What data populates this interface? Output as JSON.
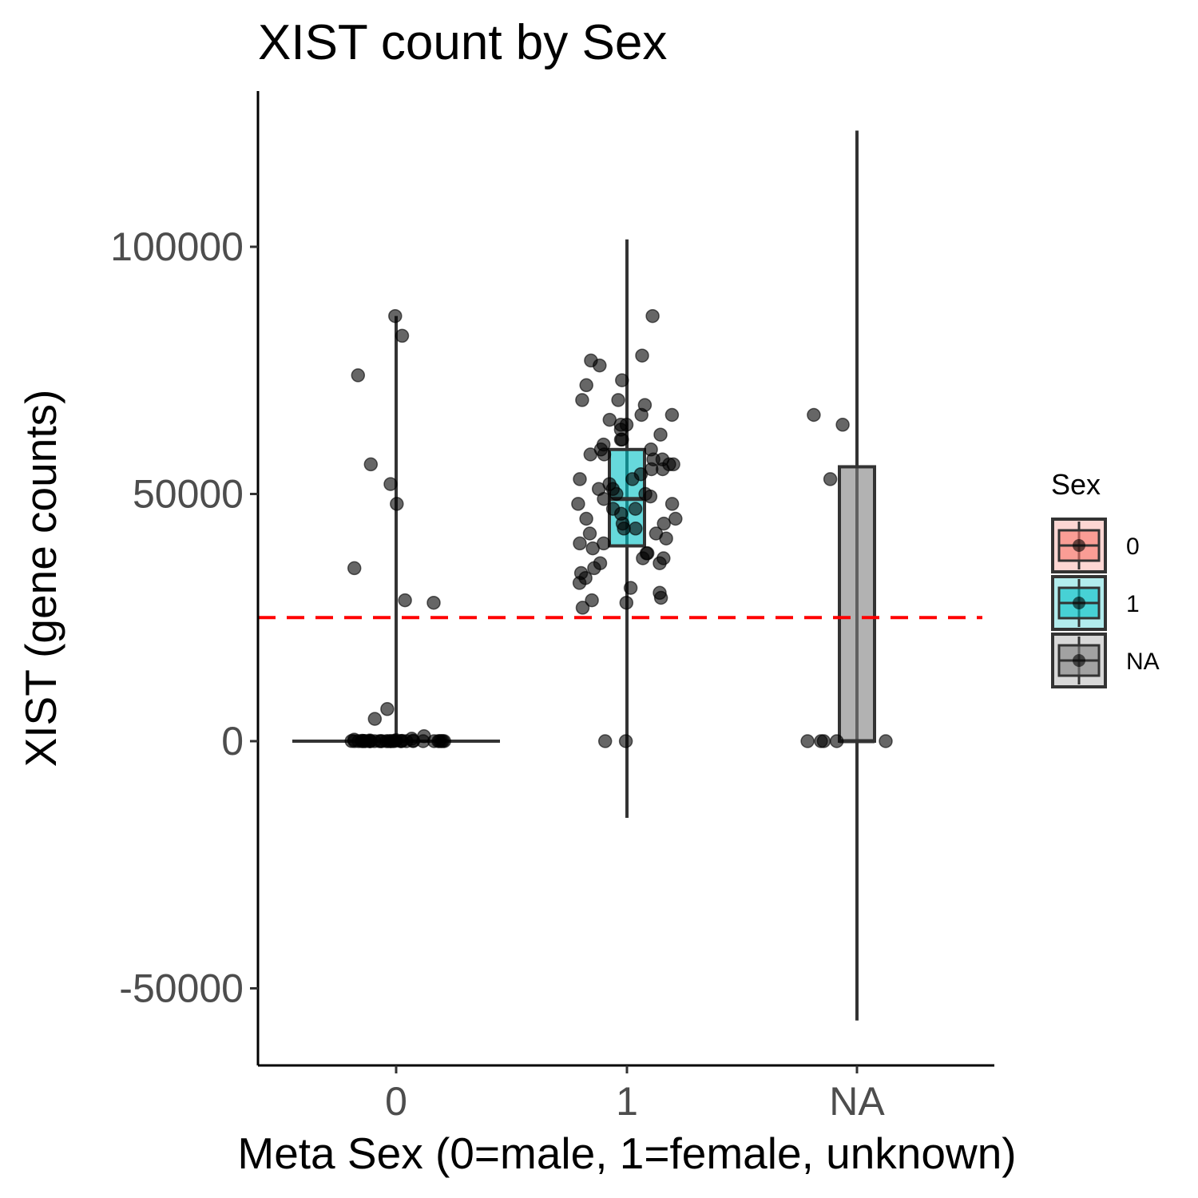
{
  "chart_data": {
    "type": "box",
    "title": "XIST count by Sex",
    "xlabel": "Meta Sex (0=male, 1=female, unknown)",
    "ylabel": "XIST (gene counts)",
    "categories": [
      "0",
      "1",
      "NA"
    ],
    "ylim": [
      -65000,
      130000
    ],
    "yticks": [
      -50000,
      0,
      50000,
      100000
    ],
    "ytick_labels": [
      "-50000",
      "0",
      "50000",
      "100000"
    ],
    "grid": false,
    "threshold_line": {
      "value": 25000,
      "color": "#ff0000",
      "style": "dashed"
    },
    "legend": {
      "title": "Sex",
      "placement": "right",
      "entries": [
        {
          "label": "0",
          "color": "#f8766d"
        },
        {
          "label": "1",
          "color": "#00bfc4"
        },
        {
          "label": "NA",
          "color": "#7f7f7f"
        }
      ]
    },
    "boxes": [
      {
        "category": "0",
        "fill": "#f8766d",
        "q1": 0,
        "median": 0,
        "q3": 0,
        "whisker_low": 0,
        "whisker_high": 86000
      },
      {
        "category": "1",
        "fill": "#00bfc4",
        "q1": 39500,
        "median": 49000,
        "q3": 59000,
        "whisker_low": -15500,
        "whisker_high": 101500
      },
      {
        "category": "NA",
        "fill": "#7f7f7f",
        "q1": 0,
        "median": 0,
        "q3": 55500,
        "whisker_low": -56500,
        "whisker_high": 123500
      }
    ],
    "points": [
      {
        "category": "0",
        "values": [
          86000,
          82000,
          74000,
          56000,
          52000,
          48000,
          35000,
          28000,
          28500,
          6500,
          4500,
          1000,
          500,
          300,
          200,
          150,
          100,
          80,
          60,
          50,
          40,
          30,
          20,
          10,
          0,
          0,
          0,
          0,
          0,
          0,
          0,
          0,
          0,
          0,
          0,
          0,
          0,
          0,
          0,
          0,
          0,
          0,
          0,
          0,
          0,
          0,
          0,
          0,
          0,
          0
        ]
      },
      {
        "category": "1",
        "values": [
          86000,
          78000,
          77000,
          76000,
          73000,
          72000,
          69000,
          69000,
          68000,
          66000,
          66000,
          65000,
          64000,
          64000,
          63000,
          62000,
          61000,
          61000,
          60000,
          59000,
          59000,
          58000,
          58000,
          57000,
          57000,
          56000,
          56000,
          55000,
          55000,
          54000,
          53000,
          53000,
          52000,
          51000,
          51000,
          50000,
          50000,
          49500,
          49000,
          48000,
          48000,
          47000,
          47000,
          46000,
          45000,
          45000,
          44000,
          44000,
          43000,
          43000,
          42000,
          42000,
          41000,
          40000,
          40000,
          39000,
          38000,
          38000,
          37000,
          37000,
          36000,
          36000,
          35000,
          34000,
          33000,
          32000,
          31000,
          30000,
          29000,
          28500,
          28000,
          27000,
          0,
          0
        ]
      },
      {
        "category": "NA",
        "values": [
          66000,
          64000,
          53000,
          0,
          0,
          0,
          0,
          0
        ]
      }
    ]
  }
}
